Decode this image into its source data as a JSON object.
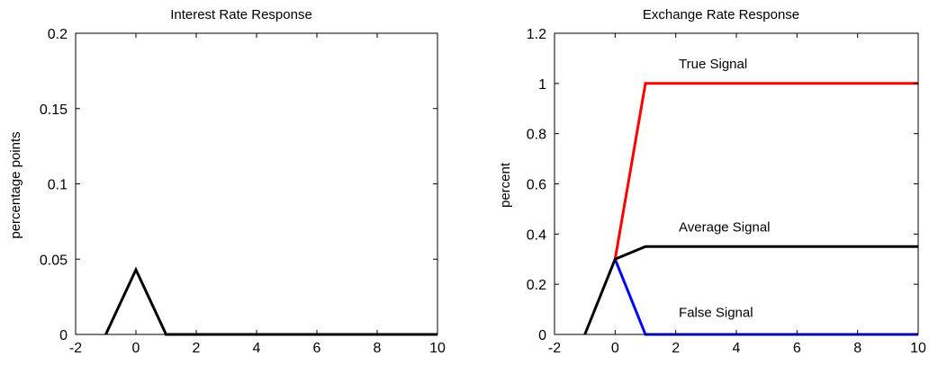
{
  "chart_data": [
    {
      "type": "line",
      "title": "Interest Rate Response",
      "xlabel": "",
      "ylabel": "percentage points",
      "xlim": [
        -2,
        10
      ],
      "ylim": [
        0,
        0.2
      ],
      "xticks": [
        -2,
        0,
        2,
        4,
        6,
        8,
        10
      ],
      "yticks": [
        0,
        0.05,
        0.1,
        0.15,
        0.2
      ],
      "xtick_labels": [
        "-2",
        "0",
        "2",
        "4",
        "6",
        "8",
        "10"
      ],
      "ytick_labels": [
        "0",
        "0.05",
        "0.1",
        "0.15",
        "0.2"
      ],
      "grid": false,
      "series": [
        {
          "color": "#000000",
          "x": [
            -1,
            0,
            1,
            2,
            3,
            4,
            5,
            6,
            7,
            8,
            9,
            10
          ],
          "y": [
            0,
            0.043,
            0,
            0,
            0,
            0,
            0,
            0,
            0,
            0,
            0,
            0
          ]
        }
      ],
      "annotations": []
    },
    {
      "type": "line",
      "title": "Exchange Rate Response",
      "xlabel": "",
      "ylabel": "percent",
      "xlim": [
        -2,
        10
      ],
      "ylim": [
        0,
        1.2
      ],
      "xticks": [
        -2,
        0,
        2,
        4,
        6,
        8,
        10
      ],
      "yticks": [
        0,
        0.2,
        0.4,
        0.6,
        0.8,
        1,
        1.2
      ],
      "xtick_labels": [
        "-2",
        "0",
        "2",
        "4",
        "6",
        "8",
        "10"
      ],
      "ytick_labels": [
        "0",
        "0.2",
        "0.4",
        "0.6",
        "0.8",
        "1",
        "1.2"
      ],
      "grid": false,
      "series": [
        {
          "name": "True Signal",
          "color": "#ff0000",
          "x": [
            0,
            1,
            2,
            3,
            4,
            5,
            6,
            7,
            8,
            9,
            10
          ],
          "y": [
            0.3,
            1,
            1,
            1,
            1,
            1,
            1,
            1,
            1,
            1,
            1
          ]
        },
        {
          "name": "False Signal",
          "color": "#0000ff",
          "x": [
            0,
            1,
            2,
            3,
            4,
            5,
            6,
            7,
            8,
            9,
            10
          ],
          "y": [
            0.3,
            0,
            0,
            0,
            0,
            0,
            0,
            0,
            0,
            0,
            0
          ]
        },
        {
          "name": "Average Signal",
          "color": "#000000",
          "x": [
            -1,
            0,
            1,
            2,
            3,
            4,
            5,
            6,
            7,
            8,
            9,
            10
          ],
          "y": [
            0,
            0.3,
            0.35,
            0.35,
            0.35,
            0.35,
            0.35,
            0.35,
            0.35,
            0.35,
            0.35,
            0.35
          ]
        }
      ],
      "annotations": [
        {
          "text": "True Signal",
          "x": 2.1,
          "y": 1.06
        },
        {
          "text": "Average Signal",
          "x": 2.1,
          "y": 0.41
        },
        {
          "text": "False Signal",
          "x": 2.1,
          "y": 0.07
        }
      ]
    }
  ]
}
